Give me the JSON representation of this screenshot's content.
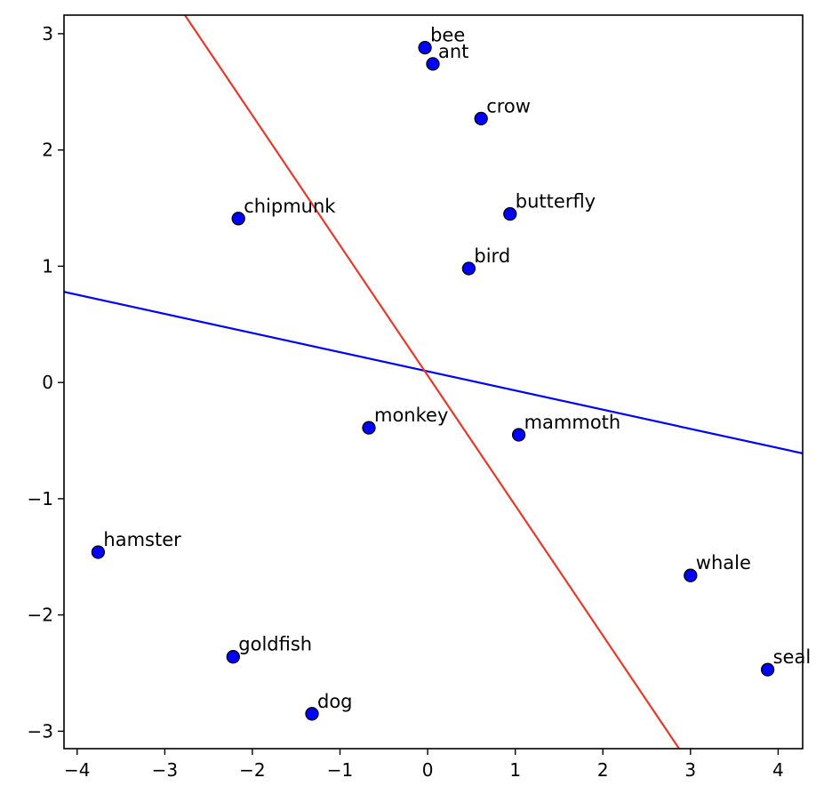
{
  "chart_data": {
    "type": "scatter",
    "title": "",
    "xlabel": "",
    "ylabel": "",
    "xlim": [
      -4.15,
      4.28
    ],
    "ylim": [
      -3.15,
      3.16
    ],
    "grid": false,
    "xticks": [
      -4,
      -3,
      -2,
      -1,
      0,
      1,
      2,
      3,
      4
    ],
    "yticks": [
      -3,
      -2,
      -1,
      0,
      1,
      2,
      3
    ],
    "xtick_labels": [
      "−4",
      "−3",
      "−2",
      "−1",
      "0",
      "1",
      "2",
      "3",
      "4"
    ],
    "ytick_labels": [
      "−3",
      "−2",
      "−1",
      "0",
      "1",
      "2",
      "3"
    ],
    "marker_color": "#0000ff",
    "marker_edge_color": "#000000",
    "points": [
      {
        "label": "bee",
        "x": -0.03,
        "y": 2.88
      },
      {
        "label": "ant",
        "x": 0.06,
        "y": 2.74
      },
      {
        "label": "crow",
        "x": 0.61,
        "y": 2.27
      },
      {
        "label": "butterfly",
        "x": 0.94,
        "y": 1.45
      },
      {
        "label": "chipmunk",
        "x": -2.16,
        "y": 1.41
      },
      {
        "label": "bird",
        "x": 0.47,
        "y": 0.98
      },
      {
        "label": "monkey",
        "x": -0.67,
        "y": -0.39
      },
      {
        "label": "mammoth",
        "x": 1.04,
        "y": -0.45
      },
      {
        "label": "hamster",
        "x": -3.76,
        "y": -1.46
      },
      {
        "label": "whale",
        "x": 3.0,
        "y": -1.66
      },
      {
        "label": "goldfish",
        "x": -2.22,
        "y": -2.36
      },
      {
        "label": "seal",
        "x": 3.88,
        "y": -2.47
      },
      {
        "label": "dog",
        "x": -1.32,
        "y": -2.85
      }
    ],
    "lines": [
      {
        "color": "#0000ff",
        "x": [
          -4.15,
          4.28
        ],
        "y": [
          0.78,
          -0.61
        ]
      },
      {
        "color": "#e8392b",
        "x": [
          -2.77,
          2.87
        ],
        "y": [
          3.16,
          -3.15
        ]
      }
    ]
  }
}
